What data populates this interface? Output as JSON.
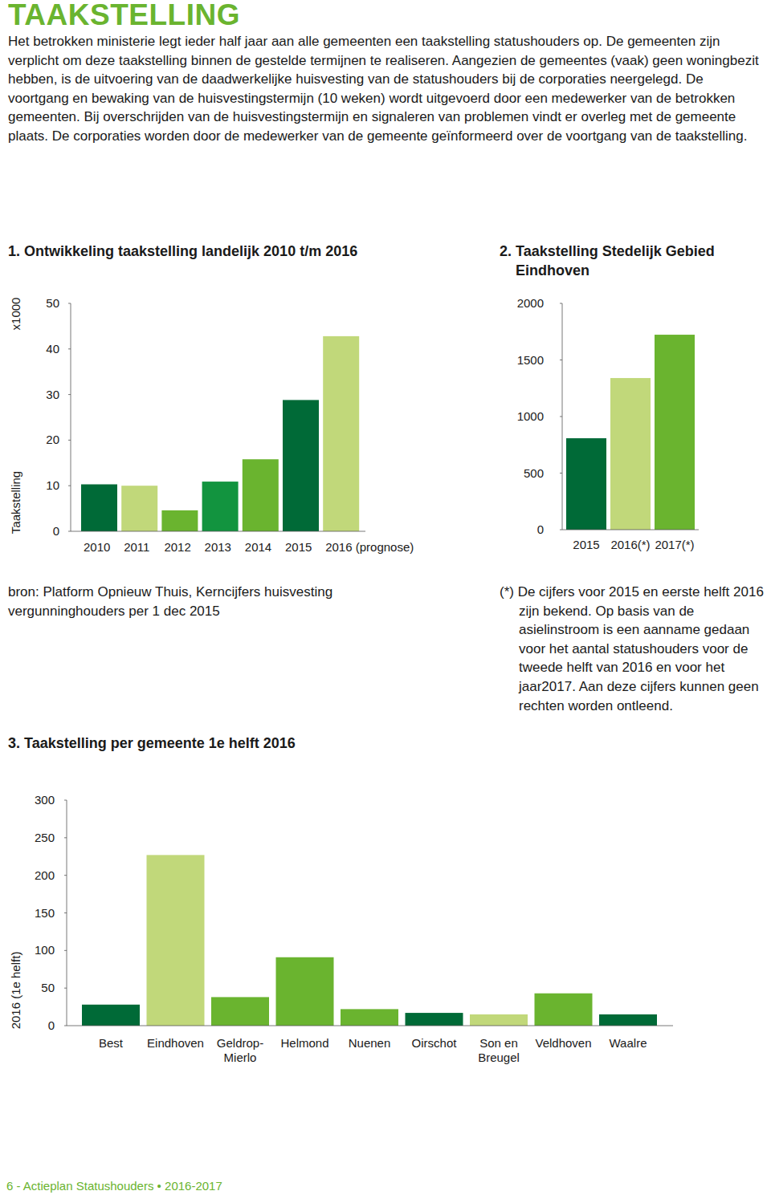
{
  "title": "TAAKSTELLING",
  "intro": "Het betrokken ministerie legt ieder half jaar aan alle gemeenten een taakstelling statushouders op. De gemeenten zijn verplicht om deze taakstelling binnen de gestelde termijnen te realiseren. Aangezien de gemeentes (vaak) geen woningbezit hebben, is de uitvoering van de daadwerkelijke huisvesting van de statushouders bij de corporaties neergelegd. De voortgang en bewaking van de huisvestingstermijn (10 weken) wordt uitgevoerd door een medewerker van de betrokken gemeenten. Bij overschrijden van de huisvestingstermijn en signaleren van problemen vindt er overleg met de gemeente plaats. De corporaties worden door de medewerker van de gemeente geïnformeerd over de voortgang van de taakstelling.",
  "chart_data": [
    {
      "type": "bar",
      "title": "1. Ontwikkeling taakstelling landelijk 2010 t/m 2016",
      "ylabel": "Taakstelling",
      "annotation": "x1000",
      "categories": [
        "2010",
        "2011",
        "2012",
        "2013",
        "2014",
        "2015",
        "2016 (prognose)"
      ],
      "values": [
        10.3,
        10.0,
        4.6,
        10.9,
        15.8,
        28.8,
        42.8
      ],
      "colors": [
        "#006a37",
        "#c1d87a",
        "#6ab42f",
        "#12943f",
        "#6ab42f",
        "#006a37",
        "#c1d87a"
      ],
      "ylim": [
        0,
        50
      ],
      "yticks": [
        0,
        10,
        20,
        30,
        40,
        50
      ]
    },
    {
      "type": "bar",
      "title": "2. Taakstelling Stedelijk Gebied Eindhoven",
      "categories": [
        "2015",
        "2016(*)",
        "2017(*)"
      ],
      "values": [
        808,
        1340,
        1723
      ],
      "colors": [
        "#006a37",
        "#c1d87a",
        "#6ab42f"
      ],
      "ylim": [
        0,
        2000
      ],
      "yticks": [
        0,
        500,
        1000,
        1500,
        2000
      ]
    },
    {
      "type": "bar",
      "title": "3. Taakstelling per gemeente 1e helft 2016",
      "ylabel": "2016 (1e helft)",
      "categories": [
        "Best",
        "Eindhoven",
        "Geldrop-Mierlo",
        "Helmond",
        "Nuenen",
        "Oirschot",
        "Son en Breugel",
        "Veldhoven",
        "Waalre"
      ],
      "values": [
        28,
        227,
        38,
        91,
        22,
        17,
        15,
        43,
        15
      ],
      "colors": [
        "#006a37",
        "#c1d87a",
        "#6ab42f",
        "#6ab42f",
        "#6ab42f",
        "#006a37",
        "#c1d87a",
        "#6ab42f",
        "#006a37"
      ],
      "ylim": [
        0,
        300
      ],
      "yticks": [
        0,
        50,
        100,
        150,
        200,
        250,
        300
      ]
    }
  ],
  "source": "bron: Platform Opnieuw Thuis, Kerncijfers huisvesting vergunninghouders per 1 dec 2015",
  "footnote": "(*) De cijfers voor 2015 en eerste helft 2016 zijn bekend. Op basis van de asielinstroom is een aanname gedaan voor het aantal statushouders voor de tweede helft van 2016 en voor het jaar2017. Aan deze cijfers kunnen geen rechten worden ontleend.",
  "footer": "6 - Actieplan Statushouders • 2016-2017"
}
